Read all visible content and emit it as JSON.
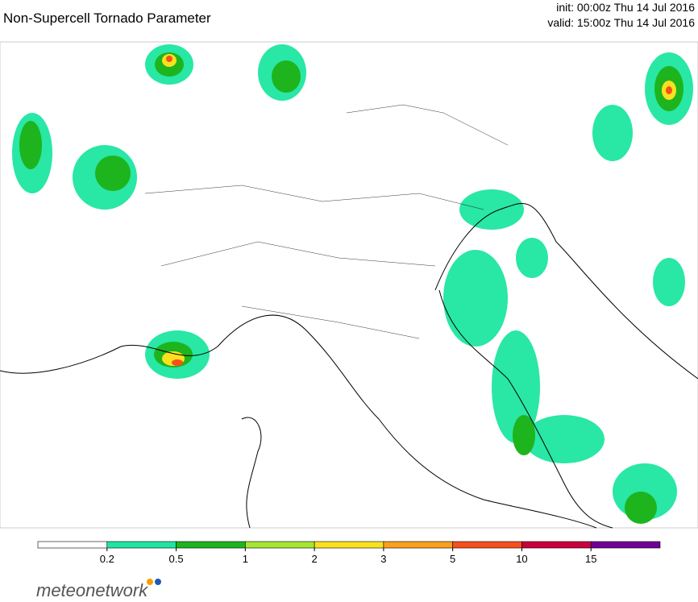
{
  "header": {
    "title": "Non-Supercell Tornado Parameter",
    "init": "init: 00:00z Thu 14 Jul 2016",
    "valid": "valid: 15:00z Thu 14 Jul 2016"
  },
  "colorbar": {
    "colors": [
      "#ffffff",
      "#1ee6a0",
      "#1eb41e",
      "#a5e632",
      "#fae11e",
      "#faa01e",
      "#f5501e",
      "#c8003c",
      "#6e0096"
    ],
    "ticks": [
      0.2,
      0.5,
      1,
      2,
      3,
      5,
      10,
      15
    ]
  },
  "logo": {
    "text": "meteonetwork"
  }
}
